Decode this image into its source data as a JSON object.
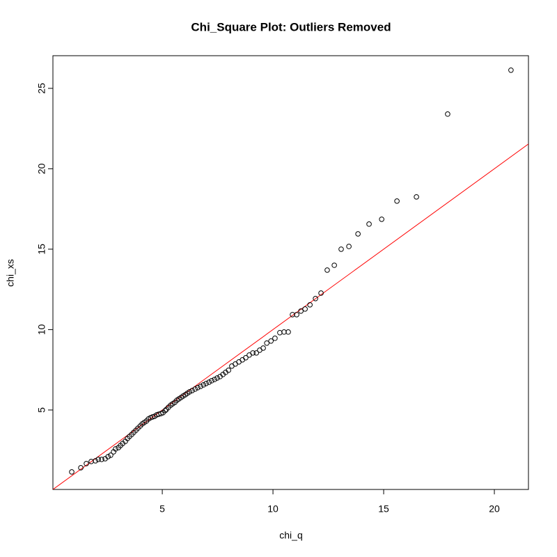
{
  "chart_data": {
    "type": "scatter",
    "title": "Chi_Square Plot: Outliers Removed",
    "x_label": "chi_q",
    "y_label": "chi_xs",
    "x": [
      0.91,
      1.32,
      1.57,
      1.79,
      1.98,
      2.11,
      2.26,
      2.42,
      2.55,
      2.67,
      2.8,
      2.89,
      3.02,
      3.11,
      3.21,
      3.33,
      3.43,
      3.52,
      3.62,
      3.71,
      3.81,
      3.9,
      4.0,
      4.09,
      4.18,
      4.28,
      4.37,
      4.47,
      4.56,
      4.65,
      4.75,
      4.84,
      4.94,
      5.03,
      5.13,
      5.19,
      5.28,
      5.38,
      5.47,
      5.57,
      5.66,
      5.75,
      5.85,
      5.94,
      6.04,
      6.13,
      6.23,
      6.35,
      6.48,
      6.6,
      6.73,
      6.86,
      6.98,
      7.11,
      7.23,
      7.36,
      7.48,
      7.61,
      7.74,
      7.86,
      7.99,
      8.14,
      8.3,
      8.46,
      8.62,
      8.77,
      8.93,
      9.09,
      9.25,
      9.4,
      9.56,
      9.72,
      9.91,
      10.09,
      10.31,
      10.5,
      10.69,
      10.88,
      11.07,
      11.26,
      11.45,
      11.67,
      11.92,
      12.17,
      12.45,
      12.77,
      13.08,
      13.43,
      13.84,
      14.34,
      14.91,
      15.6,
      16.48,
      17.89,
      20.75
    ],
    "y": [
      1.15,
      1.41,
      1.67,
      1.8,
      1.84,
      1.93,
      1.93,
      1.97,
      2.1,
      2.19,
      2.4,
      2.58,
      2.66,
      2.79,
      2.92,
      3.05,
      3.23,
      3.36,
      3.48,
      3.61,
      3.74,
      3.87,
      4.0,
      4.13,
      4.22,
      4.31,
      4.44,
      4.52,
      4.57,
      4.61,
      4.7,
      4.74,
      4.78,
      4.83,
      4.96,
      5.04,
      5.17,
      5.3,
      5.39,
      5.48,
      5.61,
      5.69,
      5.78,
      5.87,
      5.95,
      6.04,
      6.13,
      6.21,
      6.3,
      6.39,
      6.47,
      6.56,
      6.65,
      6.73,
      6.82,
      6.9,
      6.99,
      7.08,
      7.21,
      7.34,
      7.47,
      7.73,
      7.86,
      7.99,
      8.12,
      8.25,
      8.42,
      8.55,
      8.55,
      8.72,
      8.85,
      9.16,
      9.29,
      9.46,
      9.81,
      9.85,
      9.85,
      10.93,
      10.93,
      11.15,
      11.28,
      11.54,
      11.93,
      12.27,
      13.7,
      14.0,
      15.0,
      15.17,
      15.95,
      16.56,
      16.86,
      17.99,
      18.25,
      23.4,
      26.13
    ],
    "color": "#000000",
    "reference_line": {
      "intercept": 0,
      "slope": 1,
      "color": "#ff0000"
    },
    "xlim": [
      0.06,
      21.54
    ],
    "ylim": [
      0.06,
      27.03
    ],
    "xticks": [
      5,
      10,
      15,
      20
    ],
    "yticks": [
      5,
      10,
      15,
      20,
      25
    ]
  }
}
